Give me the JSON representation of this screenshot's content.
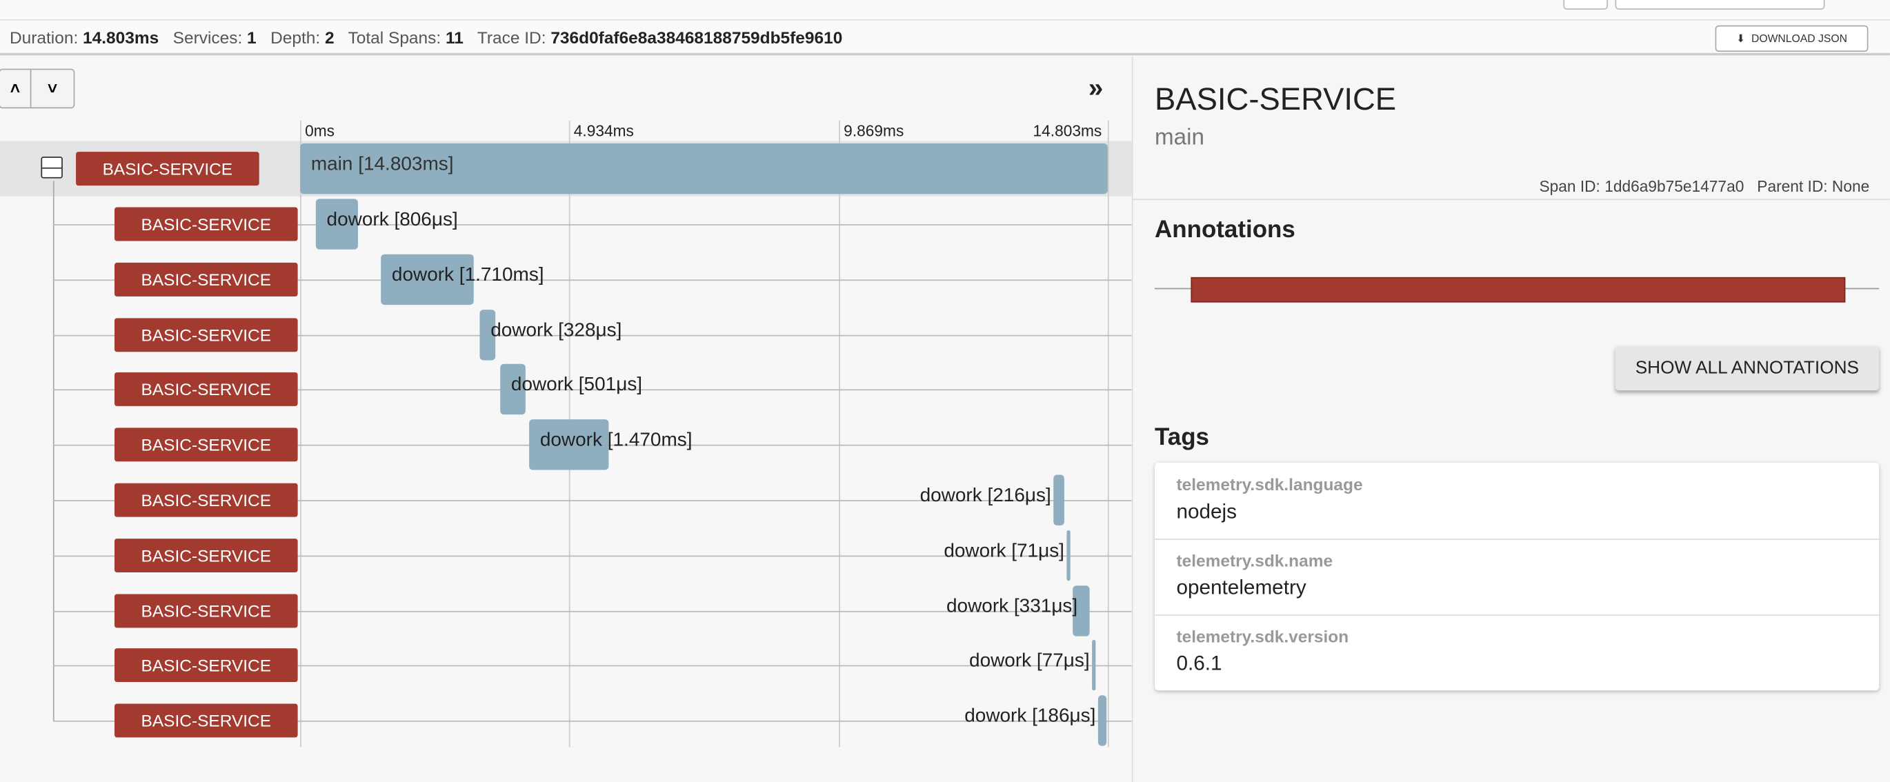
{
  "header": {
    "duration_label": "Duration:",
    "duration": "14.803ms",
    "services_label": "Services:",
    "services": "1",
    "depth_label": "Depth:",
    "depth": "2",
    "spans_label": "Total Spans:",
    "spans": "11",
    "trace_label": "Trace ID:",
    "trace_id": "736d0faf6e8a38468188759db5fe9610",
    "download": "DOWNLOAD JSON"
  },
  "timeline": {
    "ticks": [
      "0ms",
      "4.934ms",
      "9.869ms",
      "14.803ms"
    ]
  },
  "spans": [
    {
      "service": "BASIC-SERVICE",
      "label": "main [14.803ms]"
    },
    {
      "service": "BASIC-SERVICE",
      "label": "dowork [806μs]"
    },
    {
      "service": "BASIC-SERVICE",
      "label": "dowork [1.710ms]"
    },
    {
      "service": "BASIC-SERVICE",
      "label": "dowork [328μs]"
    },
    {
      "service": "BASIC-SERVICE",
      "label": "dowork [501μs]"
    },
    {
      "service": "BASIC-SERVICE",
      "label": "dowork [1.470ms]"
    },
    {
      "service": "BASIC-SERVICE",
      "label": "dowork [216μs]"
    },
    {
      "service": "BASIC-SERVICE",
      "label": "dowork [71μs]"
    },
    {
      "service": "BASIC-SERVICE",
      "label": "dowork [331μs]"
    },
    {
      "service": "BASIC-SERVICE",
      "label": "dowork [77μs]"
    },
    {
      "service": "BASIC-SERVICE",
      "label": "dowork [186μs]"
    }
  ],
  "detail": {
    "service": "BASIC-SERVICE",
    "span_name": "main",
    "span_id_label": "Span ID:",
    "span_id": "1dd6a9b75e1477a0",
    "parent_id_label": "Parent ID:",
    "parent_id": "None",
    "annotations_title": "Annotations",
    "show_all": "SHOW ALL ANNOTATIONS",
    "tags_title": "Tags",
    "tags": [
      {
        "key": "telemetry.sdk.language",
        "value": "nodejs"
      },
      {
        "key": "telemetry.sdk.name",
        "value": "opentelemetry"
      },
      {
        "key": "telemetry.sdk.version",
        "value": "0.6.1"
      }
    ]
  }
}
